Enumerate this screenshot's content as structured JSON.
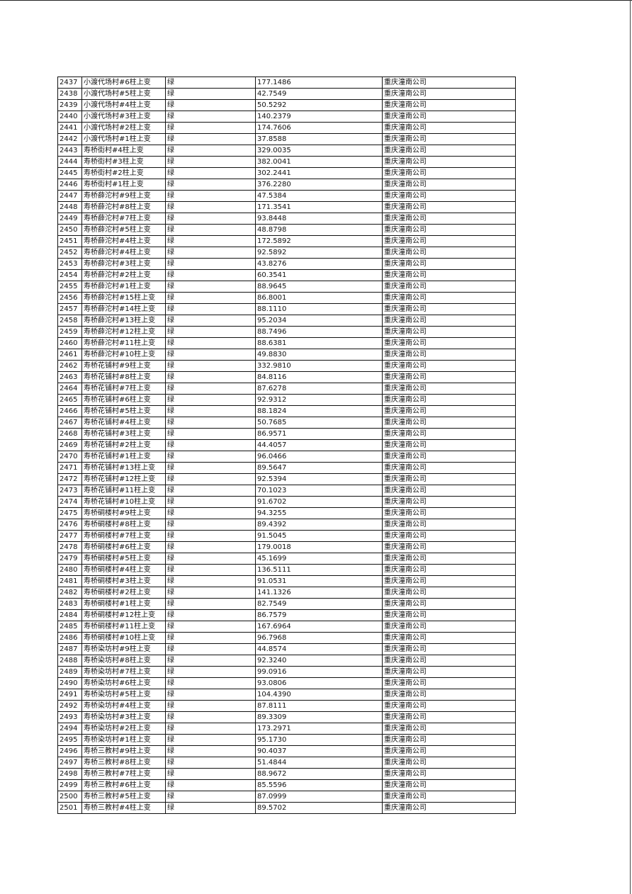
{
  "table": {
    "company": "重庆潼南公司",
    "status": "绿",
    "rows": [
      [
        "2437",
        "小渡代场村#6柱上变",
        "177.1486"
      ],
      [
        "2438",
        "小渡代场村#5柱上变",
        "42.7549"
      ],
      [
        "2439",
        "小渡代场村#4柱上变",
        "50.5292"
      ],
      [
        "2440",
        "小渡代场村#3柱上变",
        "140.2379"
      ],
      [
        "2441",
        "小渡代场村#2柱上变",
        "174.7606"
      ],
      [
        "2442",
        "小渡代场村#1柱上变",
        "37.8588"
      ],
      [
        "2443",
        "寿桥街村#4柱上变",
        "329.0035"
      ],
      [
        "2444",
        "寿桥街村#3柱上变",
        "382.0041"
      ],
      [
        "2445",
        "寿桥街村#2柱上变",
        "302.2441"
      ],
      [
        "2446",
        "寿桥街村#1柱上变",
        "376.2280"
      ],
      [
        "2447",
        "寿桥薛沱村#9柱上变",
        "47.5384"
      ],
      [
        "2448",
        "寿桥薛沱村#8柱上变",
        "171.3541"
      ],
      [
        "2449",
        "寿桥薛沱村#7柱上变",
        "93.8448"
      ],
      [
        "2450",
        "寿桥薛沱村#5柱上变",
        "48.8798"
      ],
      [
        "2451",
        "寿桥薛沱村#4柱上变",
        "172.5892"
      ],
      [
        "2452",
        "寿桥薛沱村#4柱上变",
        "92.5892"
      ],
      [
        "2453",
        "寿桥薛沱村#3柱上变",
        "43.8276"
      ],
      [
        "2454",
        "寿桥薛沱村#2柱上变",
        "60.3541"
      ],
      [
        "2455",
        "寿桥薛沱村#1柱上变",
        "88.9645"
      ],
      [
        "2456",
        "寿桥薛沱村#15柱上变",
        "86.8001"
      ],
      [
        "2457",
        "寿桥薛沱村#14柱上变",
        "88.1110"
      ],
      [
        "2458",
        "寿桥薛沱村#13柱上变",
        "95.2034"
      ],
      [
        "2459",
        "寿桥薛沱村#12柱上变",
        "88.7496"
      ],
      [
        "2460",
        "寿桥薛沱村#11柱上变",
        "88.6381"
      ],
      [
        "2461",
        "寿桥薛沱村#10柱上变",
        "49.8830"
      ],
      [
        "2462",
        "寿桥花铺村#9柱上变",
        "332.9810"
      ],
      [
        "2463",
        "寿桥花铺村#8柱上变",
        "84.8116"
      ],
      [
        "2464",
        "寿桥花铺村#7柱上变",
        "87.6278"
      ],
      [
        "2465",
        "寿桥花铺村#6柱上变",
        "92.9312"
      ],
      [
        "2466",
        "寿桥花铺村#5柱上变",
        "88.1824"
      ],
      [
        "2467",
        "寿桥花铺村#4柱上变",
        "50.7685"
      ],
      [
        "2468",
        "寿桥花铺村#3柱上变",
        "86.9571"
      ],
      [
        "2469",
        "寿桥花铺村#2柱上变",
        "44.4057"
      ],
      [
        "2470",
        "寿桥花铺村#1柱上变",
        "96.0466"
      ],
      [
        "2471",
        "寿桥花铺村#13柱上变",
        "89.5647"
      ],
      [
        "2472",
        "寿桥花铺村#12柱上变",
        "92.5394"
      ],
      [
        "2473",
        "寿桥花铺村#11柱上变",
        "70.1023"
      ],
      [
        "2474",
        "寿桥花铺村#10柱上变",
        "91.6702"
      ],
      [
        "2475",
        "寿桥硐楼村#9柱上变",
        "94.3255"
      ],
      [
        "2476",
        "寿桥硐楼村#8柱上变",
        "89.4392"
      ],
      [
        "2477",
        "寿桥硐楼村#7柱上变",
        "91.5045"
      ],
      [
        "2478",
        "寿桥硐楼村#6柱上变",
        "179.0018"
      ],
      [
        "2479",
        "寿桥硐楼村#5柱上变",
        "45.1699"
      ],
      [
        "2480",
        "寿桥硐楼村#4柱上变",
        "136.5111"
      ],
      [
        "2481",
        "寿桥硐楼村#3柱上变",
        "91.0531"
      ],
      [
        "2482",
        "寿桥硐楼村#2柱上变",
        "141.1326"
      ],
      [
        "2483",
        "寿桥硐楼村#1柱上变",
        "82.7549"
      ],
      [
        "2484",
        "寿桥硐楼村#12柱上变",
        "86.7579"
      ],
      [
        "2485",
        "寿桥硐楼村#11柱上变",
        "167.6964"
      ],
      [
        "2486",
        "寿桥硐楼村#10柱上变",
        "96.7968"
      ],
      [
        "2487",
        "寿桥染坊村#9柱上变",
        "44.8574"
      ],
      [
        "2488",
        "寿桥染坊村#8柱上变",
        "92.3240"
      ],
      [
        "2489",
        "寿桥染坊村#7柱上变",
        "99.0916"
      ],
      [
        "2490",
        "寿桥染坊村#6柱上变",
        "93.0806"
      ],
      [
        "2491",
        "寿桥染坊村#5柱上变",
        "104.4390"
      ],
      [
        "2492",
        "寿桥染坊村#4柱上变",
        "87.8111"
      ],
      [
        "2493",
        "寿桥染坊村#3柱上变",
        "89.3309"
      ],
      [
        "2494",
        "寿桥染坊村#2柱上变",
        "173.2971"
      ],
      [
        "2495",
        "寿桥染坊村#1柱上变",
        "95.1730"
      ],
      [
        "2496",
        "寿桥三教村#9柱上变",
        "90.4037"
      ],
      [
        "2497",
        "寿桥三教村#8柱上变",
        "51.4844"
      ],
      [
        "2498",
        "寿桥三教村#7柱上变",
        "88.9672"
      ],
      [
        "2499",
        "寿桥三教村#6柱上变",
        "85.5596"
      ],
      [
        "2500",
        "寿桥三教村#5柱上变",
        "87.0999"
      ],
      [
        "2501",
        "寿桥三教村#4柱上变",
        "89.5702"
      ]
    ]
  }
}
